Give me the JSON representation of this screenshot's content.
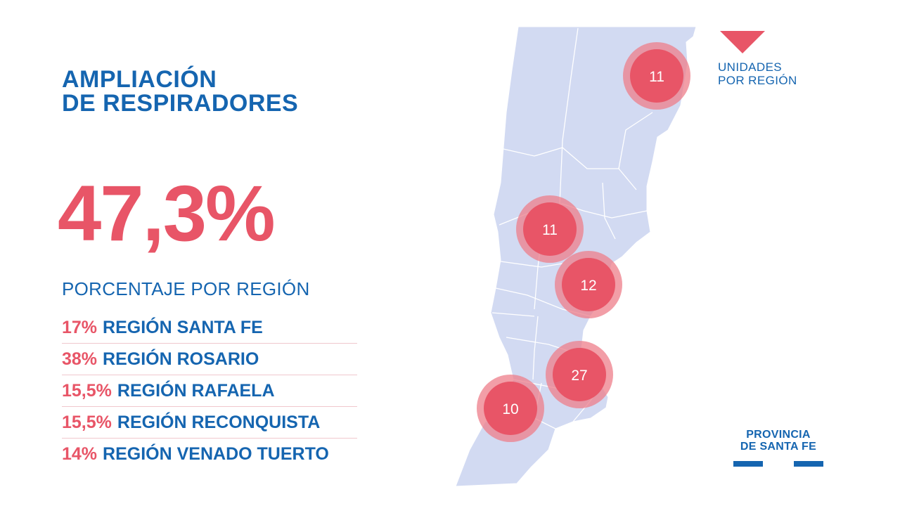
{
  "title": {
    "line1": "AMPLIACIÓN",
    "line2": "DE RESPIRADORES"
  },
  "headline_percentage": "47,3%",
  "subtitle": "PORCENTAJE POR REGIÓN",
  "regions": [
    {
      "pct": "17%",
      "name": "REGIÓN SANTA FE"
    },
    {
      "pct": "38%",
      "name": "REGIÓN ROSARIO"
    },
    {
      "pct": "15,5%",
      "name": "REGIÓN RAFAELA"
    },
    {
      "pct": "15,5%",
      "name": "REGIÓN RECONQUISTA"
    },
    {
      "pct": "14%",
      "name": "REGIÓN VENADO TUERTO"
    }
  ],
  "map_markers": [
    {
      "value": "11"
    },
    {
      "value": "11"
    },
    {
      "value": "12"
    },
    {
      "value": "27"
    },
    {
      "value": "10"
    }
  ],
  "legend": {
    "line1": "UNIDADES",
    "line2": "POR REGIÓN",
    "icon": "down-triangle-icon"
  },
  "brand": {
    "line1": "PROVINCIA",
    "line2": "DE SANTA FE"
  },
  "colors": {
    "accent_red": "#e85567",
    "brand_blue": "#1565b0",
    "map_fill": "#d2daf2"
  }
}
